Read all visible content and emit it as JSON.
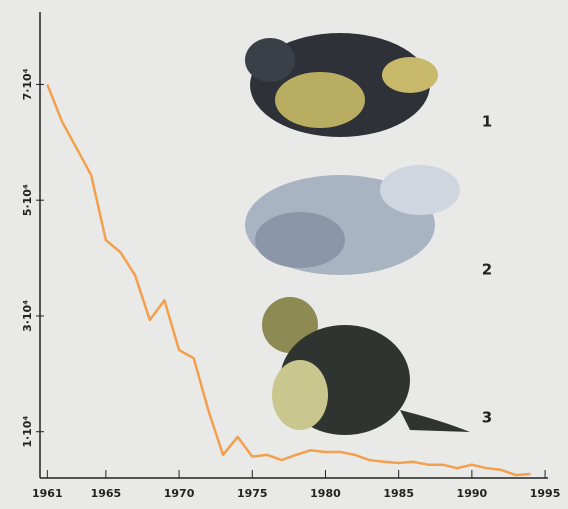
{
  "chart_data": {
    "type": "line",
    "x": [
      1961,
      1962,
      1963,
      1964,
      1965,
      1966,
      1967,
      1968,
      1969,
      1970,
      1971,
      1972,
      1973,
      1974,
      1975,
      1976,
      1977,
      1978,
      1979,
      1980,
      1981,
      1982,
      1983,
      1984,
      1985,
      1986,
      1987,
      1988,
      1989,
      1990,
      1991,
      1992,
      1993,
      1994
    ],
    "series": [
      {
        "color": "#f2a04e",
        "values": [
          70000,
          63600,
          59000,
          54300,
          43100,
          41000,
          37000,
          29300,
          32700,
          24100,
          22700,
          13700,
          6000,
          9100,
          5700,
          6000,
          5100,
          6000,
          6800,
          6500,
          6500,
          6000,
          5100,
          4800,
          4600,
          4800,
          4300,
          4300,
          3700,
          4300,
          3700,
          3400,
          2500,
          2700
        ]
      }
    ],
    "xlim": [
      1960.5,
      1995.2
    ],
    "xticks": [
      1961,
      1965,
      1970,
      1975,
      1980,
      1985,
      1990,
      1995
    ],
    "ylim": [
      2000,
      82000
    ],
    "yticks": [
      {
        "value": 10000,
        "label": "1·10⁴"
      },
      {
        "value": 30000,
        "label": "3·10⁴"
      },
      {
        "value": 50000,
        "label": "5·10⁴"
      },
      {
        "value": 70000,
        "label": "7·10⁴"
      }
    ],
    "annotations": [
      "1",
      "2",
      "3"
    ]
  }
}
